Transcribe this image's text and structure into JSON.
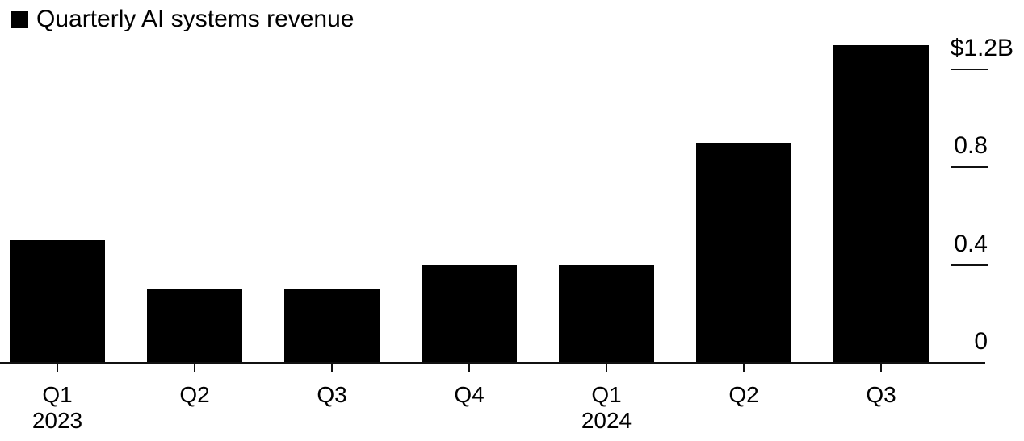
{
  "chart_data": {
    "type": "bar",
    "title": "Quarterly AI systems revenue",
    "categories": [
      "Q1 2023",
      "Q2 2023",
      "Q3 2023",
      "Q4 2023",
      "Q1 2024",
      "Q2 2024",
      "Q3 2024"
    ],
    "x_tick_labels": [
      "Q1",
      "Q2",
      "Q3",
      "Q4",
      "Q1",
      "Q2",
      "Q3"
    ],
    "year_labels": [
      {
        "bar_index": 0,
        "label": "2023"
      },
      {
        "bar_index": 4,
        "label": "2024"
      }
    ],
    "values": [
      0.5,
      0.3,
      0.3,
      0.4,
      0.4,
      0.9,
      1.3
    ],
    "y_ticks": [
      {
        "value": 0,
        "label": "0"
      },
      {
        "value": 0.4,
        "label": "0.4"
      },
      {
        "value": 0.8,
        "label": "0.8"
      },
      {
        "value": 1.2,
        "label": "$1.2B"
      }
    ],
    "ylim": [
      0,
      1.35
    ],
    "xlabel": "",
    "ylabel": "",
    "grid": false,
    "legend_position": "top-left",
    "y_axis_side": "right",
    "bar_color": "#000000",
    "axis_color": "#111111",
    "text_color": "#000000",
    "background_color": "#ffffff"
  },
  "legend": {
    "label": "Quarterly AI systems revenue",
    "swatch_color": "#000000"
  }
}
